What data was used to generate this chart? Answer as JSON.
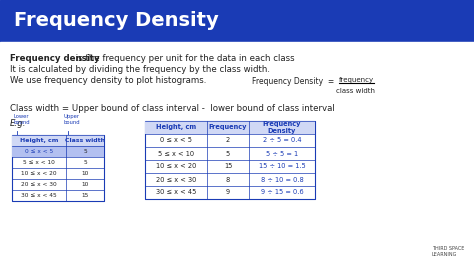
{
  "title": "Frequency Density",
  "title_bg": "#1a3bb5",
  "title_color": "#ffffff",
  "bg_color": "#e8e8e8",
  "content_bg": "#ffffff",
  "body_text_color": "#222222",
  "blue_text_color": "#1a3bb5",
  "line1_bold": "Frequency density",
  "line1_rest": " is the frequency per unit for the data in each class",
  "line2": "It is calculated by dividing the frequency by the class width.",
  "line3": "We use frequency density to plot histograms.",
  "formula_label": "Frequency Density  =",
  "formula_num": "frequency",
  "formula_den": "class width",
  "class_width_line": "Class width = Upper bound of class interval -  lower bound of class interval",
  "eg_label": "E.g.",
  "small_table_headers": [
    "Height, cm",
    "Class width"
  ],
  "small_table_rows": [
    [
      "0 ≤ x < 5",
      "5"
    ],
    [
      "5 ≤ x < 10",
      "5"
    ],
    [
      "10 ≤ x < 20",
      "10"
    ],
    [
      "20 ≤ x < 30",
      "10"
    ],
    [
      "30 ≤ x < 45",
      "15"
    ]
  ],
  "main_table_headers": [
    "Height, cm",
    "Frequency",
    "Frequency\nDensity"
  ],
  "main_table_rows": [
    [
      "0 ≤ x < 5",
      "2",
      "2 ÷ 5 = 0.4"
    ],
    [
      "5 ≤ x < 10",
      "5",
      "5 ÷ 5 = 1"
    ],
    [
      "10 ≤ x < 20",
      "15",
      "15 ÷ 10 = 1.5"
    ],
    [
      "20 ≤ x < 30",
      "8",
      "8 ÷ 10 = 0.8"
    ],
    [
      "30 ≤ x < 45",
      "9",
      "9 ÷ 15 = 0.6"
    ]
  ],
  "table_header_color": "#1a3bb5",
  "table_fd_color": "#1a3bb5",
  "logo_colors": [
    "#1a3bb5",
    "#f5a623",
    "#4caf50"
  ],
  "logo_text": "THIRD SPACE\nLEARNING"
}
